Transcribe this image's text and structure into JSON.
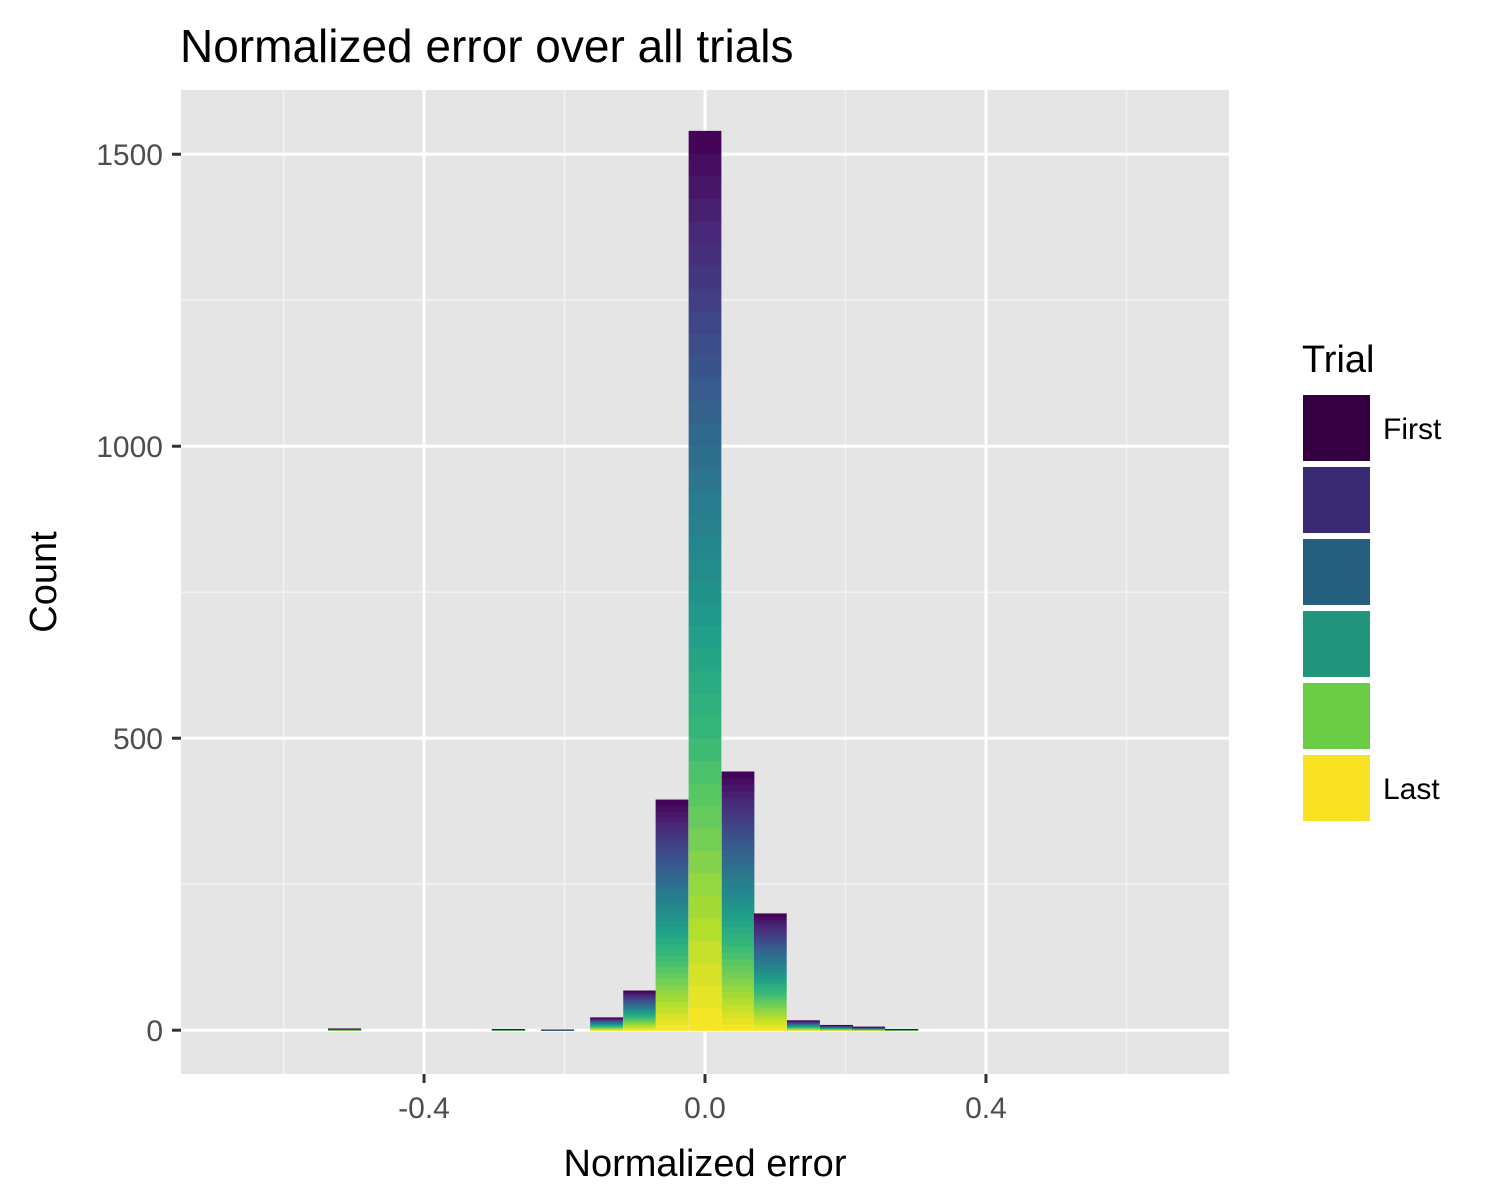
{
  "chart_data": {
    "type": "bar",
    "subtype": "stacked-histogram",
    "title": "Normalized error over all trials",
    "xlabel": "Normalized error",
    "ylabel": "Count",
    "x_ticks": [
      -0.4,
      0.0,
      0.4
    ],
    "x_tick_labels": [
      "-0.4",
      "0.0",
      "0.4"
    ],
    "y_ticks": [
      0,
      500,
      1000,
      1500
    ],
    "y_tick_labels": [
      "0",
      "500",
      "1000",
      "1500"
    ],
    "xlim": [
      -0.746,
      0.746
    ],
    "ylim": [
      -75,
      1610
    ],
    "bin_width": 0.0466,
    "grid": true,
    "legend": {
      "title": "Trial",
      "position": "right",
      "keys": [
        {
          "label": "First",
          "color": "#340042"
        },
        {
          "label": "",
          "color": "#3a2a74"
        },
        {
          "label": "",
          "color": "#265f7d"
        },
        {
          "label": "",
          "color": "#21967c"
        },
        {
          "label": "",
          "color": "#6acb45"
        },
        {
          "label": "Last",
          "color": "#f9e221"
        }
      ]
    },
    "bins": [
      {
        "x": -0.513,
        "count": 3
      },
      {
        "x": -0.28,
        "count": 2
      },
      {
        "x": -0.21,
        "count": 1
      },
      {
        "x": -0.14,
        "count": 22
      },
      {
        "x": -0.093,
        "count": 68
      },
      {
        "x": -0.047,
        "count": 395
      },
      {
        "x": 0.0,
        "count": 1540
      },
      {
        "x": 0.047,
        "count": 443
      },
      {
        "x": 0.093,
        "count": 200
      },
      {
        "x": 0.14,
        "count": 17
      },
      {
        "x": 0.187,
        "count": 9
      },
      {
        "x": 0.233,
        "count": 6
      },
      {
        "x": 0.28,
        "count": 2
      }
    ],
    "palette": "viridis"
  }
}
